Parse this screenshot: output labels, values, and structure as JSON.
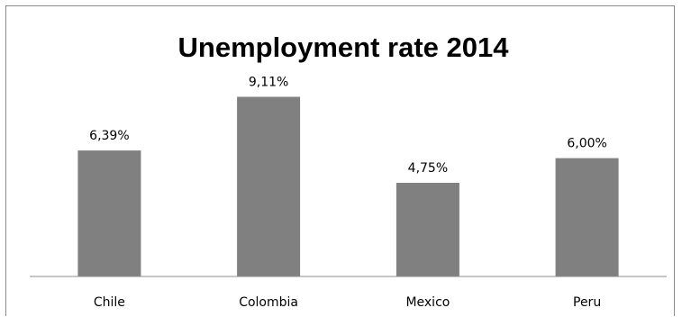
{
  "chart_data": {
    "type": "bar",
    "title": "Unemployment rate 2014",
    "categories": [
      "Chile",
      "Colombia",
      "Mexico",
      "Peru"
    ],
    "values": [
      6.39,
      9.11,
      4.75,
      6.0
    ],
    "data_labels": [
      "6,39%",
      "9,11%",
      "4,75%",
      "6,00%"
    ],
    "ylim": [
      0,
      10
    ],
    "bar_color": "#808080",
    "grid": false,
    "legend": "none"
  }
}
